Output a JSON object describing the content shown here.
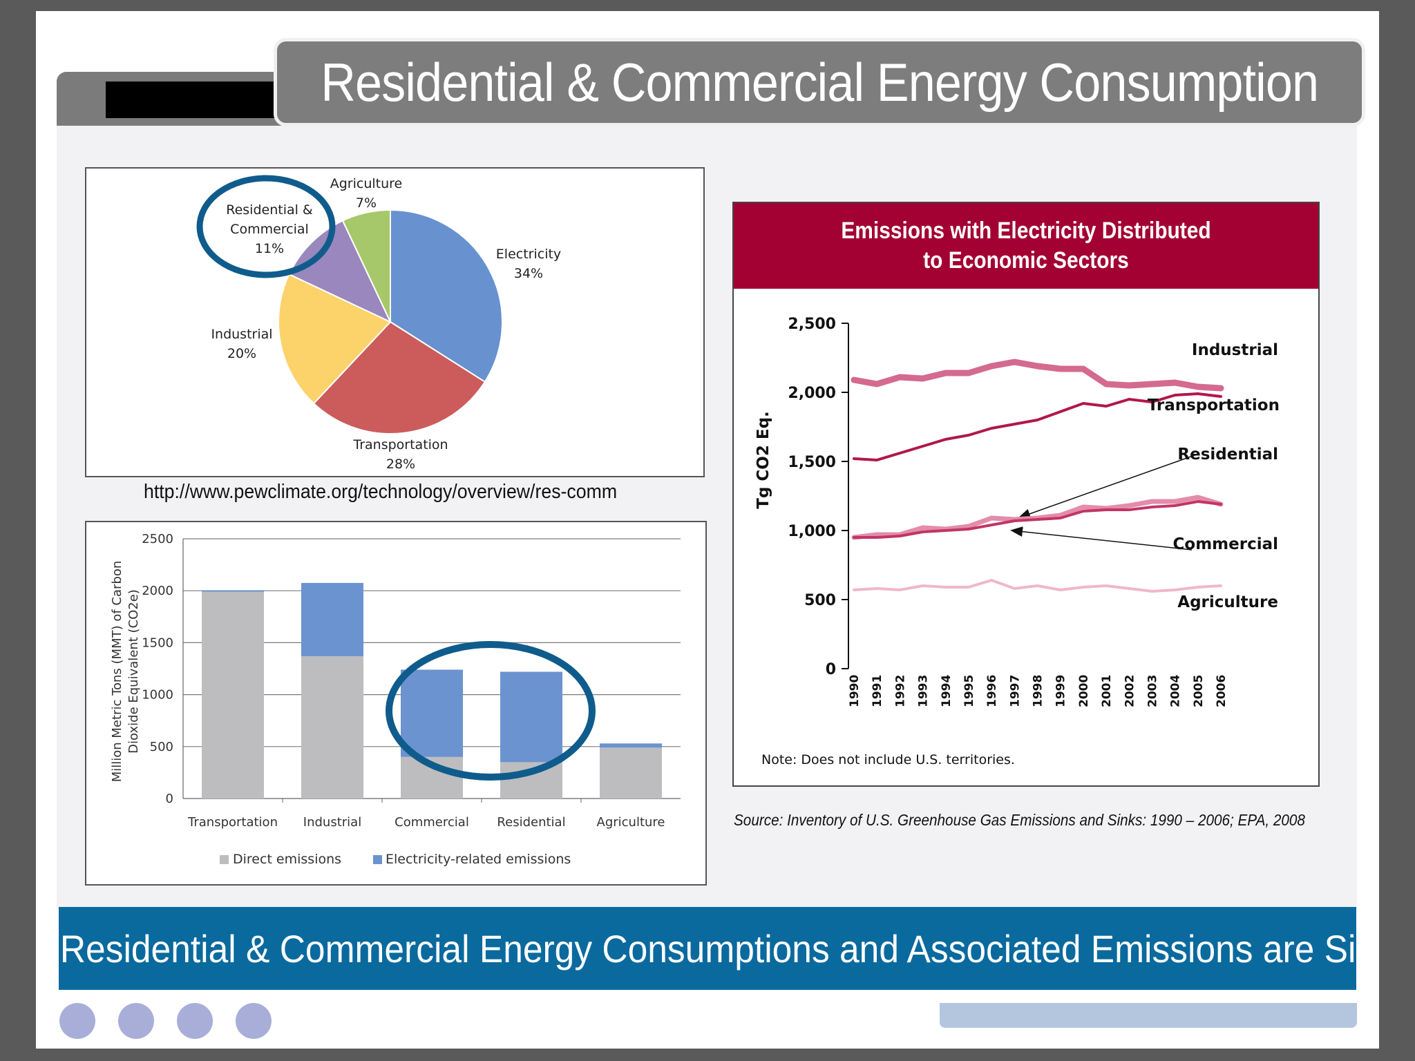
{
  "title": "Residential & Commercial Energy Consumption",
  "url": "http://www.pewclimate.org/technology/overview/res-comm",
  "source": "Source: Inventory of U.S. Greenhouse Gas Emissions and Sinks: 1990 – 2006; EPA, 2008",
  "banner": "Residential & Commercial Energy Consumptions and Associated Emissions are Significant",
  "colors": {
    "title_bar": "#7d7d7d",
    "banner": "#0a6a9e",
    "line_header": "#a30033",
    "direct": "#bdbdc0",
    "electricity": "#6b93cf",
    "circle": "#0f5c8c"
  },
  "chart_data": [
    {
      "type": "pie",
      "title": "",
      "slices": [
        {
          "label": "Electricity",
          "pct_label": "34%",
          "value": 34,
          "color": "#6891cf"
        },
        {
          "label": "Transportation",
          "pct_label": "28%",
          "value": 28,
          "color": "#cc5c5c"
        },
        {
          "label": "Industrial",
          "pct_label": "20%",
          "value": 20,
          "color": "#fcd36a"
        },
        {
          "label": "Residential & Commercial",
          "label_line1": "Residential &",
          "label_line2": "Commercial",
          "pct_label": "11%",
          "value": 11,
          "color": "#9a87bd"
        },
        {
          "label": "Agriculture",
          "pct_label": "7%",
          "value": 7,
          "color": "#a6c86a"
        }
      ],
      "highlight": "Residential & Commercial"
    },
    {
      "type": "bar",
      "stacked": true,
      "categories": [
        "Transportation",
        "Industrial",
        "Commercial",
        "Residential",
        "Agriculture"
      ],
      "series": [
        {
          "name": "Direct emissions",
          "values": [
            1990,
            1370,
            400,
            350,
            490
          ]
        },
        {
          "name": "Electricity-related emissions",
          "values": [
            15,
            705,
            840,
            870,
            40
          ]
        }
      ],
      "ylabel_line1": "Million Metric Tons (MMT) of Carbon",
      "ylabel_line2": "Dioxide Equivalent (CO2e)",
      "ylim": [
        0,
        2500
      ],
      "yticks": [
        0,
        500,
        1000,
        1500,
        2000,
        2500
      ],
      "legend_position": "bottom",
      "highlight": [
        "Commercial",
        "Residential"
      ]
    },
    {
      "type": "line",
      "title_line1": "Emissions with Electricity Distributed",
      "title_line2": "to Economic Sectors",
      "x": [
        "1990",
        "1991",
        "1992",
        "1993",
        "1994",
        "1995",
        "1996",
        "1997",
        "1998",
        "1999",
        "2000",
        "2001",
        "2002",
        "2003",
        "2004",
        "2005",
        "2006"
      ],
      "ylabel": "Tg CO2 Eq.",
      "ylim": [
        0,
        2500
      ],
      "yticks": [
        0,
        500,
        1000,
        1500,
        2000,
        2500
      ],
      "ytick_labels": [
        "0",
        "500",
        "1,000",
        "1,500",
        "2,000",
        "2,500"
      ],
      "note": "Note: Does not include U.S. territories.",
      "series": [
        {
          "name": "Industrial",
          "color": "#d46a8f",
          "width": 9,
          "values": [
            2090,
            2060,
            2110,
            2100,
            2140,
            2140,
            2190,
            2220,
            2190,
            2170,
            2170,
            2060,
            2050,
            2060,
            2070,
            2040,
            2030
          ]
        },
        {
          "name": "Transportation",
          "color": "#b0184a",
          "width": 4,
          "values": [
            1520,
            1510,
            1560,
            1610,
            1660,
            1690,
            1740,
            1770,
            1800,
            1860,
            1920,
            1900,
            1950,
            1930,
            1980,
            1990,
            1970
          ]
        },
        {
          "name": "Residential",
          "color": "#e38cab",
          "width": 7,
          "values": [
            950,
            970,
            970,
            1020,
            1010,
            1030,
            1090,
            1080,
            1090,
            1110,
            1170,
            1160,
            1180,
            1210,
            1210,
            1240,
            1190
          ]
        },
        {
          "name": "Commercial",
          "color": "#c23563",
          "width": 4,
          "values": [
            950,
            950,
            960,
            990,
            1000,
            1010,
            1040,
            1070,
            1080,
            1090,
            1140,
            1150,
            1150,
            1170,
            1180,
            1210,
            1190
          ]
        },
        {
          "name": "Agriculture",
          "color": "#f0b7c9",
          "width": 4,
          "values": [
            570,
            580,
            570,
            600,
            590,
            590,
            640,
            580,
            600,
            570,
            590,
            600,
            580,
            560,
            570,
            590,
            600
          ]
        }
      ]
    }
  ]
}
